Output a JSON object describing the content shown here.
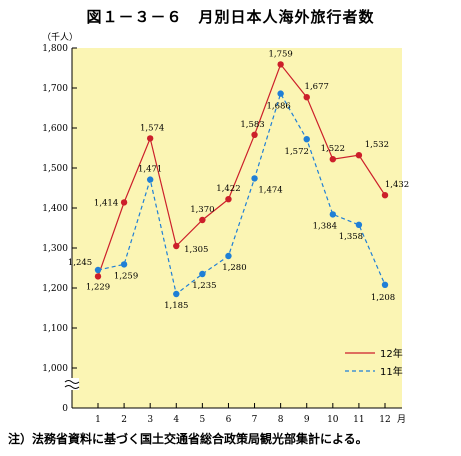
{
  "title": "図１－３－６　月別日本人海外旅行者数",
  "footnote": "注）法務省資料に基づく国土交通省総合政策局観光部集計による。",
  "chart_data": {
    "type": "line",
    "title": "図１－３－６　月別日本人海外旅行者数",
    "ylabel": "（千人）",
    "xlabel": "月",
    "categories": [
      "1",
      "2",
      "3",
      "4",
      "5",
      "6",
      "7",
      "8",
      "9",
      "10",
      "11",
      "12"
    ],
    "y_ticks": [
      1000,
      1100,
      1200,
      1300,
      1400,
      1500,
      1600,
      1700,
      1800
    ],
    "y_tick_labels": [
      "1,000",
      "1,100",
      "1,200",
      "1,300",
      "1,400",
      "1,500",
      "1,600",
      "1,700",
      "1,800"
    ],
    "y_bottom_label": "0",
    "axis_break": true,
    "ylim": [
      1000,
      1800
    ],
    "grid": false,
    "background_color": "#fbf5b4",
    "legend_position": "bottom-right",
    "series": [
      {
        "name": "12年",
        "color": "#cc1f2a",
        "line_style": "solid",
        "values": [
          1229,
          1414,
          1574,
          1305,
          1370,
          1422,
          1583,
          1759,
          1677,
          1522,
          1532,
          1432
        ],
        "labels": [
          "1,229",
          "1,414",
          "1,574",
          "1,305",
          "1,370",
          "1,422",
          "1,583",
          "1,759",
          "1,677",
          "1,522",
          "1,532",
          "1,432"
        ]
      },
      {
        "name": "11年",
        "color": "#1f7fd6",
        "line_style": "dashed",
        "values": [
          1245,
          1259,
          1471,
          1185,
          1235,
          1280,
          1474,
          1686,
          1572,
          1384,
          1358,
          1208
        ],
        "labels": [
          "1,245",
          "1,259",
          "1,471",
          "1,185",
          "1,235",
          "1,280",
          "1,474",
          "1,686",
          "1,572",
          "1,384",
          "1,358",
          "1,208"
        ]
      }
    ]
  }
}
